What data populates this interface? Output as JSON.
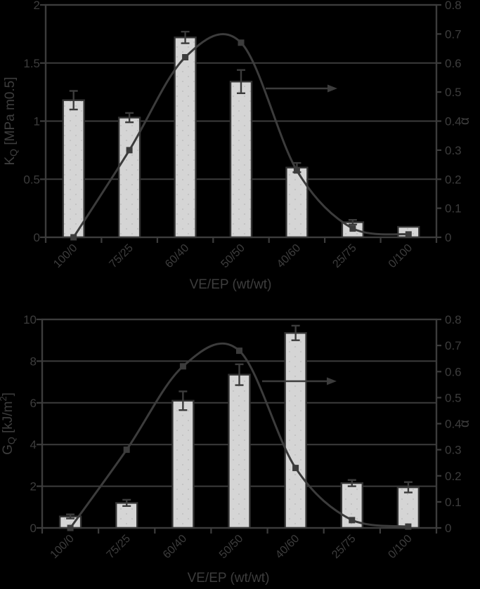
{
  "figure": {
    "background": "#000000",
    "colors": {
      "ink": "#3c3c3c",
      "text": "#3d3d3d",
      "bar_fill": "#d5d5d5",
      "bar_dots": "#bfbfbf",
      "bar_border": "#333333"
    }
  },
  "chart_data": [
    {
      "id": "kq",
      "type": "bar+line",
      "title": "",
      "categories": [
        "100/0",
        "75/25",
        "60/40",
        "50/50",
        "40/60",
        "25/75",
        "0/100"
      ],
      "xlabel": "VE/EP (wt/wt)",
      "ylabel_left": [
        {
          "t": "K"
        },
        {
          "t": "Q",
          "style": "sub"
        },
        {
          "t": " [MPa m0.5]"
        }
      ],
      "ylabel_right": "α",
      "ylim_left": [
        0,
        2
      ],
      "ylim_right": [
        0,
        0.8
      ],
      "grid": true,
      "legend": "none",
      "gridlines_left": [
        0.5,
        1,
        1.5
      ],
      "left_ticks": [
        {
          "v": 0,
          "label": "0"
        },
        {
          "v": 0.5,
          "label": "0.5"
        },
        {
          "v": 1,
          "label": "1"
        },
        {
          "v": 1.5,
          "label": "1.5"
        },
        {
          "v": 2,
          "label": "2"
        }
      ],
      "right_ticks": [
        {
          "v": 0,
          "label": "0"
        },
        {
          "v": 0.1,
          "label": "0.1"
        },
        {
          "v": 0.2,
          "label": "0.2"
        },
        {
          "v": 0.3,
          "label": "0.3"
        },
        {
          "v": 0.4,
          "label": "0.4"
        },
        {
          "v": 0.5,
          "label": "0.5"
        },
        {
          "v": 0.6,
          "label": "0.6"
        },
        {
          "v": 0.7,
          "label": "0.7"
        },
        {
          "v": 0.8,
          "label": "0.8"
        }
      ],
      "series": [
        {
          "name": "KQ fracture toughness bars",
          "type": "bar",
          "axis": "left",
          "values": [
            1.18,
            1.03,
            1.72,
            1.34,
            0.6,
            0.13,
            0.09
          ],
          "errors": [
            0.08,
            0.04,
            0.05,
            0.1,
            0.04,
            0.02,
            0
          ]
        },
        {
          "name": "alpha smoothed line",
          "type": "line",
          "axis": "right",
          "values": [
            0,
            0.3,
            0.62,
            0.67,
            0.23,
            0.03,
            0.01
          ]
        }
      ],
      "annotations": {
        "arrow_to_right_axis": true
      }
    },
    {
      "id": "gq",
      "type": "bar+line",
      "title": "",
      "categories": [
        "100/0",
        "75/25",
        "60/40",
        "50/50",
        "40/60",
        "25/75",
        "0/100"
      ],
      "xlabel": "VE/EP (wt/wt)",
      "ylabel_left": [
        {
          "t": "G"
        },
        {
          "t": "Q",
          "style": "sub"
        },
        {
          "t": " [kJ/m"
        },
        {
          "t": "2",
          "style": "sup"
        },
        {
          "t": "]"
        }
      ],
      "ylabel_right": "α",
      "ylim_left": [
        0,
        10
      ],
      "ylim_right": [
        0,
        0.8
      ],
      "grid": true,
      "legend": "none",
      "gridlines_left": [
        2,
        4,
        6,
        8
      ],
      "left_ticks": [
        {
          "v": 0,
          "label": "0"
        },
        {
          "v": 2,
          "label": "2"
        },
        {
          "v": 4,
          "label": "4"
        },
        {
          "v": 6,
          "label": "6"
        },
        {
          "v": 8,
          "label": "8"
        },
        {
          "v": 10,
          "label": "10"
        }
      ],
      "right_ticks": [
        {
          "v": 0,
          "label": "0"
        },
        {
          "v": 0.1,
          "label": "0.1"
        },
        {
          "v": 0.2,
          "label": "0.2"
        },
        {
          "v": 0.3,
          "label": "0.3"
        },
        {
          "v": 0.4,
          "label": "0.4"
        },
        {
          "v": 0.5,
          "label": "0.5"
        },
        {
          "v": 0.6,
          "label": "0.6"
        },
        {
          "v": 0.7,
          "label": "0.7"
        },
        {
          "v": 0.8,
          "label": "0.8"
        }
      ],
      "series": [
        {
          "name": "GQ fracture energy bars",
          "type": "bar",
          "axis": "left",
          "values": [
            0.55,
            1.2,
            6.1,
            7.35,
            9.35,
            2.15,
            1.95
          ],
          "errors": [
            0.1,
            0.15,
            0.45,
            0.5,
            0.35,
            0.15,
            0.25
          ]
        },
        {
          "name": "alpha smoothed line",
          "type": "line",
          "axis": "right",
          "values": [
            0,
            0.3,
            0.62,
            0.68,
            0.23,
            0.03,
            0.005
          ]
        }
      ],
      "annotations": {
        "arrow_to_right_axis": true
      }
    }
  ]
}
